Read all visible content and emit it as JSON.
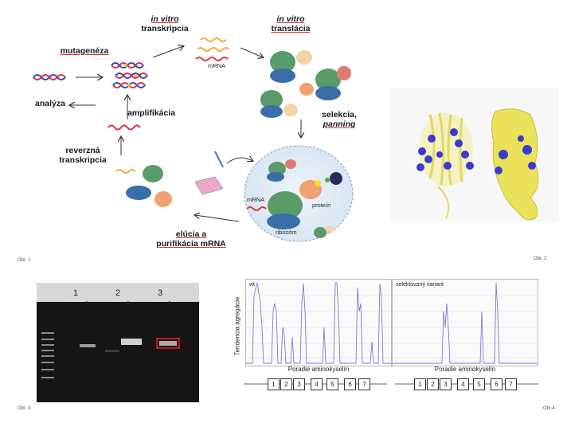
{
  "fig1": {
    "mutagenesis": "mutagenéza",
    "transcription_italic": "in vitro",
    "transcription": "transkripcia",
    "translation_italic": "in vitro",
    "translation": "translácia",
    "mrna_top": "mRNA",
    "analysis": "analýza",
    "amplification": "amplifikácia",
    "selection": "selekcia,",
    "panning": "panning",
    "reverse1": "reverzná",
    "reverse2": "transkripcia",
    "mrna_circle": "mRNA",
    "protein": "proteín",
    "ribosome": "ribozóm",
    "elution1": "elúcia a",
    "elution2": "purifikácia mRNA",
    "caption": "Obr. 1"
  },
  "fig2": {
    "caption": "Obr. 2"
  },
  "fig3": {
    "caption": "Obr. 3",
    "lanes": [
      "1",
      "2",
      "3"
    ],
    "signs": [
      "-",
      "+",
      "-",
      "+",
      "-",
      "+"
    ]
  },
  "fig4": {
    "caption": "Obr.4",
    "ylabel": "Tendencia agregácie",
    "left_title": "wt",
    "right_title": "selektovaný variant",
    "xlabel": "Poradie aminokyselín",
    "segments": [
      "1",
      "2",
      "3",
      "4",
      "5",
      "6",
      "7"
    ],
    "colors": {
      "line": "#7a7ae0",
      "grid": "#d0d0d0"
    }
  }
}
